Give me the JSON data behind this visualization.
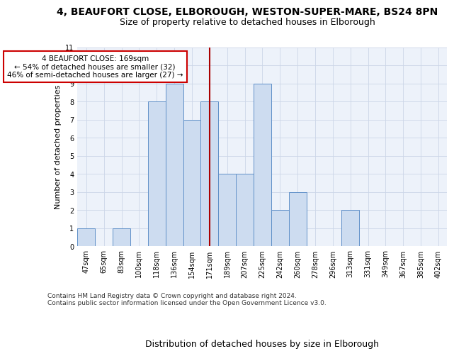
{
  "title1": "4, BEAUFORT CLOSE, ELBOROUGH, WESTON-SUPER-MARE, BS24 8PN",
  "title2": "Size of property relative to detached houses in Elborough",
  "xlabel": "Distribution of detached houses by size in Elborough",
  "ylabel": "Number of detached properties",
  "categories": [
    "47sqm",
    "65sqm",
    "83sqm",
    "100sqm",
    "118sqm",
    "136sqm",
    "154sqm",
    "171sqm",
    "189sqm",
    "207sqm",
    "225sqm",
    "242sqm",
    "260sqm",
    "278sqm",
    "296sqm",
    "313sqm",
    "331sqm",
    "349sqm",
    "367sqm",
    "385sqm",
    "402sqm"
  ],
  "values": [
    1,
    0,
    1,
    0,
    8,
    9,
    7,
    8,
    4,
    4,
    9,
    2,
    3,
    0,
    0,
    2,
    0,
    0,
    0,
    0,
    0
  ],
  "bar_color": "#cddcf0",
  "bar_edge_color": "#6090c8",
  "marker_index": 7,
  "marker_color": "#aa0000",
  "annotation_text": "4 BEAUFORT CLOSE: 169sqm\n← 54% of detached houses are smaller (32)\n46% of semi-detached houses are larger (27) →",
  "annotation_box_color": "#ffffff",
  "annotation_box_edge": "#cc0000",
  "ylim": [
    0,
    11
  ],
  "yticks": [
    0,
    1,
    2,
    3,
    4,
    5,
    6,
    7,
    8,
    9,
    10,
    11
  ],
  "footer": "Contains HM Land Registry data © Crown copyright and database right 2024.\nContains public sector information licensed under the Open Government Licence v3.0.",
  "title1_fontsize": 10,
  "title2_fontsize": 9,
  "xlabel_fontsize": 9,
  "ylabel_fontsize": 8,
  "tick_fontsize": 7,
  "ann_fontsize": 7.5,
  "footer_fontsize": 6.5,
  "grid_color": "#ccd6e8",
  "bg_color": "#edf2fa"
}
